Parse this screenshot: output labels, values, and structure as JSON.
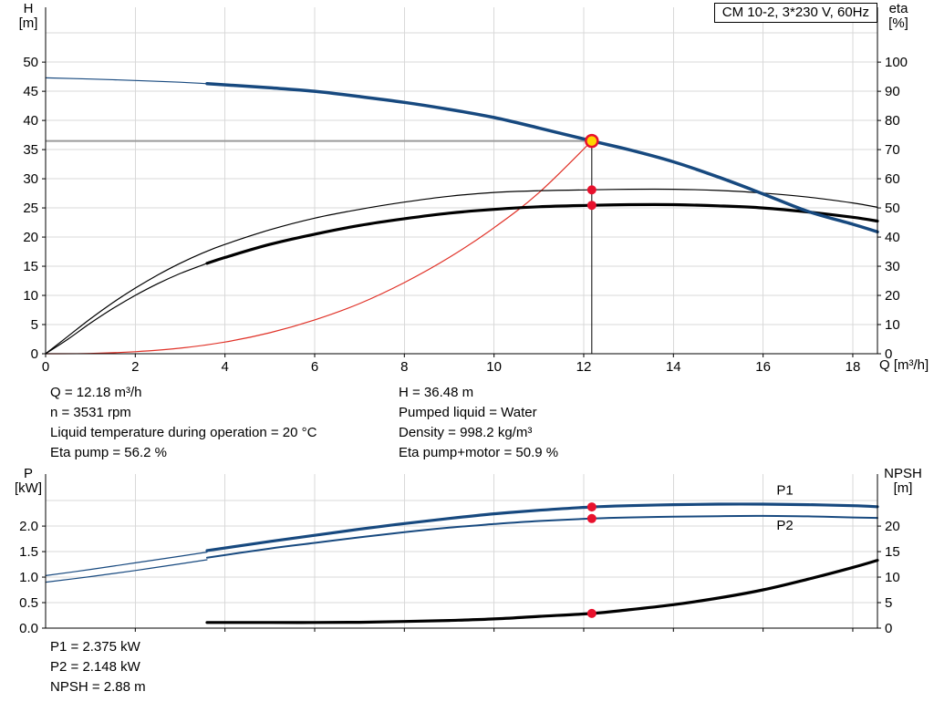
{
  "colors": {
    "curve_blue": "#17497f",
    "curve_black": "#000000",
    "curve_red": "#e03127",
    "marker_red": "#e8112d",
    "marker_yellow": "#ffd500",
    "grid": "#d9d9d9",
    "guide_gray": "#9b9b9b"
  },
  "annotations": {
    "duty_left": [
      "Q = 12.18 m³/h",
      "n = 3531 rpm",
      "Liquid temperature during operation = 20 °C",
      "Eta pump = 56.2 %"
    ],
    "duty_right": [
      "H = 36.48 m",
      "Pumped liquid = Water",
      "Density = 998.2 kg/m³",
      "Eta pump+motor = 50.9 %"
    ],
    "power": [
      "P1 = 2.375 kW",
      "P2 = 2.148 kW",
      "NPSH = 2.88 m"
    ]
  },
  "chart_data": [
    {
      "id": "head-eta-chart",
      "type": "line",
      "title": "CM 10-2, 3*230 V, 60Hz",
      "x_axis": {
        "label": "Q [m³/h]",
        "lim": [
          0,
          18.55
        ],
        "grid_ticks": [
          2,
          4,
          6,
          8,
          10,
          12,
          14,
          16,
          18
        ],
        "tick_labels": [
          {
            "v": 0,
            "t": "0"
          },
          {
            "v": 2,
            "t": "2"
          },
          {
            "v": 4,
            "t": "4"
          },
          {
            "v": 6,
            "t": "6"
          },
          {
            "v": 8,
            "t": "8"
          },
          {
            "v": 10,
            "t": "10"
          },
          {
            "v": 12,
            "t": "12"
          },
          {
            "v": 14,
            "t": "14"
          },
          {
            "v": 16,
            "t": "16"
          },
          {
            "v": 18,
            "t": "18"
          }
        ]
      },
      "left_axis": {
        "label_lines": [
          "H",
          "[m]"
        ],
        "lim": [
          0,
          59.4
        ],
        "grid_ticks": [
          5,
          10,
          15,
          20,
          25,
          30,
          35,
          40,
          45,
          50,
          55
        ],
        "tick_labels": [
          {
            "v": 0,
            "t": "0"
          },
          {
            "v": 5,
            "t": "5"
          },
          {
            "v": 10,
            "t": "10"
          },
          {
            "v": 15,
            "t": "15"
          },
          {
            "v": 20,
            "t": "20"
          },
          {
            "v": 25,
            "t": "25"
          },
          {
            "v": 30,
            "t": "30"
          },
          {
            "v": 35,
            "t": "35"
          },
          {
            "v": 40,
            "t": "40"
          },
          {
            "v": 45,
            "t": "45"
          },
          {
            "v": 50,
            "t": "50"
          }
        ]
      },
      "right_axis": {
        "label_lines": [
          "eta",
          "[%]"
        ],
        "lim": [
          0,
          118.8
        ],
        "grid_ticks": [],
        "tick_labels": [
          {
            "v": 0,
            "t": "0"
          },
          {
            "v": 10,
            "t": "10"
          },
          {
            "v": 20,
            "t": "20"
          },
          {
            "v": 30,
            "t": "30"
          },
          {
            "v": 40,
            "t": "40"
          },
          {
            "v": 50,
            "t": "50"
          },
          {
            "v": 60,
            "t": "60"
          },
          {
            "v": 70,
            "t": "70"
          },
          {
            "v": 80,
            "t": "80"
          },
          {
            "v": 90,
            "t": "90"
          },
          {
            "v": 100,
            "t": "100"
          }
        ]
      },
      "guides": [
        {
          "name": "duty-h-guide",
          "type": "h",
          "y": 36.48,
          "x0": 0,
          "x1": 12.18,
          "axis": "left",
          "color": "#9b9b9b",
          "width": 2
        },
        {
          "name": "duty-v-guide",
          "type": "v",
          "x": 12.18,
          "y0": 0,
          "y1": 36.48,
          "axis": "left",
          "color": "#000000",
          "width": 1
        }
      ],
      "series": [
        {
          "name": "system-curve",
          "axis": "left",
          "color": "#e03127",
          "width": 1.2,
          "points": [
            [
              0,
              0
            ],
            [
              1,
              0.05
            ],
            [
              2,
              0.35
            ],
            [
              3,
              0.95
            ],
            [
              4,
              2.0
            ],
            [
              5,
              3.6
            ],
            [
              6,
              5.8
            ],
            [
              7,
              8.6
            ],
            [
              8,
              12.2
            ],
            [
              9,
              16.5
            ],
            [
              10,
              21.6
            ],
            [
              11,
              27.6
            ],
            [
              12.18,
              36.48
            ]
          ]
        },
        {
          "name": "eta-pump-motor-thin",
          "axis": "right",
          "color": "#000000",
          "width": 1.2,
          "points": [
            [
              0,
              0
            ],
            [
              0.5,
              5
            ],
            [
              1,
              10.5
            ],
            [
              1.5,
              15.5
            ],
            [
              2,
              20
            ],
            [
              2.5,
              24
            ],
            [
              3,
              27.5
            ],
            [
              3.6,
              31
            ]
          ]
        },
        {
          "name": "eta-pump-motor-curve",
          "axis": "right",
          "color": "#000000",
          "width": 3.2,
          "points": [
            [
              3.6,
              31
            ],
            [
              4,
              33
            ],
            [
              5,
              37.5
            ],
            [
              6,
              41
            ],
            [
              7,
              44
            ],
            [
              8,
              46.3
            ],
            [
              9,
              48.2
            ],
            [
              10,
              49.5
            ],
            [
              11,
              50.4
            ],
            [
              12.18,
              50.9
            ],
            [
              13,
              51.1
            ],
            [
              14,
              51.1
            ],
            [
              15,
              50.7
            ],
            [
              16,
              50.0
            ],
            [
              17,
              48.6
            ],
            [
              18,
              46.8
            ],
            [
              18.55,
              45.5
            ]
          ]
        },
        {
          "name": "eta-pump-curve",
          "axis": "right",
          "color": "#000000",
          "width": 1.2,
          "points": [
            [
              0,
              0
            ],
            [
              0.5,
              6
            ],
            [
              1,
              12
            ],
            [
              1.5,
              17.5
            ],
            [
              2,
              22.5
            ],
            [
              2.5,
              27
            ],
            [
              3,
              31
            ],
            [
              3.5,
              34.5
            ],
            [
              4,
              37.5
            ],
            [
              5,
              42.5
            ],
            [
              6,
              46.5
            ],
            [
              7,
              49.5
            ],
            [
              8,
              52
            ],
            [
              9,
              54
            ],
            [
              10,
              55.3
            ],
            [
              11,
              55.9
            ],
            [
              12.18,
              56.2
            ],
            [
              13,
              56.4
            ],
            [
              14,
              56.4
            ],
            [
              15,
              56.0
            ],
            [
              16,
              55.1
            ],
            [
              17,
              53.7
            ],
            [
              18,
              51.7
            ],
            [
              18.55,
              50.2
            ]
          ]
        },
        {
          "name": "head-curve-thin",
          "axis": "left",
          "color": "#17497f",
          "width": 1.2,
          "points": [
            [
              0,
              47.3
            ],
            [
              1,
              47.1
            ],
            [
              2,
              46.85
            ],
            [
              3,
              46.55
            ],
            [
              3.6,
              46.3
            ]
          ]
        },
        {
          "name": "head-curve",
          "axis": "left",
          "color": "#17497f",
          "width": 3.5,
          "points": [
            [
              3.6,
              46.3
            ],
            [
              5,
              45.6
            ],
            [
              6,
              45.0
            ],
            [
              7,
              44.1
            ],
            [
              8,
              43.1
            ],
            [
              9,
              41.9
            ],
            [
              10,
              40.5
            ],
            [
              11,
              38.7
            ],
            [
              12.18,
              36.48
            ],
            [
              13,
              35.0
            ],
            [
              14,
              32.9
            ],
            [
              15,
              30.3
            ],
            [
              16,
              27.4
            ],
            [
              17,
              24.4
            ],
            [
              18,
              22.2
            ],
            [
              18.55,
              20.9
            ]
          ]
        }
      ],
      "markers": [
        {
          "name": "eta-pump-dot",
          "x": 12.18,
          "y": 56.2,
          "axis": "right",
          "r": 5,
          "fill": "#e8112d"
        },
        {
          "name": "eta-pump-motor-dot",
          "x": 12.18,
          "y": 50.9,
          "axis": "right",
          "r": 5,
          "fill": "#e8112d"
        },
        {
          "name": "duty-point",
          "x": 12.18,
          "y": 36.48,
          "axis": "left",
          "r": 6.5,
          "fill": "#ffd500",
          "stroke": "#e8112d",
          "stroke_width": 2.5,
          "interactable": true
        }
      ],
      "series_labels": []
    },
    {
      "id": "power-npsh-chart",
      "type": "line",
      "title": "",
      "x_axis": {
        "label": "",
        "lim": [
          0,
          18.55
        ],
        "grid_ticks": [
          2,
          4,
          6,
          8,
          10,
          12,
          14,
          16,
          18
        ],
        "tick_labels": []
      },
      "left_axis": {
        "label_lines": [
          "P",
          "[kW]"
        ],
        "lim": [
          0,
          3.02
        ],
        "grid_ticks": [
          0.5,
          1,
          1.5,
          2,
          2.5
        ],
        "tick_labels": [
          {
            "v": 0,
            "t": "0.0"
          },
          {
            "v": 0.5,
            "t": "0.5"
          },
          {
            "v": 1,
            "t": "1.0"
          },
          {
            "v": 1.5,
            "t": "1.5"
          },
          {
            "v": 2,
            "t": "2.0"
          }
        ]
      },
      "right_axis": {
        "label_lines": [
          "NPSH",
          "[m]"
        ],
        "lim": [
          0,
          30.2
        ],
        "grid_ticks": [],
        "tick_labels": [
          {
            "v": 0,
            "t": "0"
          },
          {
            "v": 5,
            "t": "5"
          },
          {
            "v": 10,
            "t": "10"
          },
          {
            "v": 15,
            "t": "15"
          },
          {
            "v": 20,
            "t": "20"
          }
        ]
      },
      "guides": [],
      "series": [
        {
          "name": "npsh-curve",
          "axis": "right",
          "color": "#000000",
          "width": 3.2,
          "points": [
            [
              3.6,
              1.1
            ],
            [
              5,
              1.1
            ],
            [
              6,
              1.1
            ],
            [
              7,
              1.15
            ],
            [
              8,
              1.3
            ],
            [
              9,
              1.5
            ],
            [
              10,
              1.8
            ],
            [
              11,
              2.3
            ],
            [
              12.18,
              2.88
            ],
            [
              13,
              3.6
            ],
            [
              14,
              4.6
            ],
            [
              15,
              5.9
            ],
            [
              16,
              7.5
            ],
            [
              17,
              9.6
            ],
            [
              18,
              11.9
            ],
            [
              18.55,
              13.3
            ]
          ]
        },
        {
          "name": "p2-curve-thin",
          "axis": "left",
          "color": "#17497f",
          "width": 1.2,
          "points": [
            [
              0,
              0.9
            ],
            [
              1,
              1.01
            ],
            [
              2,
              1.13
            ],
            [
              3,
              1.26
            ],
            [
              3.6,
              1.34
            ]
          ]
        },
        {
          "name": "p2-curve",
          "axis": "left",
          "color": "#17497f",
          "width": 2,
          "points": [
            [
              3.6,
              1.38
            ],
            [
              5,
              1.56
            ],
            [
              6,
              1.67
            ],
            [
              7,
              1.78
            ],
            [
              8,
              1.88
            ],
            [
              9,
              1.97
            ],
            [
              10,
              2.04
            ],
            [
              11,
              2.1
            ],
            [
              12.18,
              2.148
            ],
            [
              13,
              2.17
            ],
            [
              14,
              2.185
            ],
            [
              15,
              2.195
            ],
            [
              16,
              2.2
            ],
            [
              17,
              2.19
            ],
            [
              18,
              2.17
            ],
            [
              18.55,
              2.16
            ]
          ]
        },
        {
          "name": "p1-curve-thin",
          "axis": "left",
          "color": "#17497f",
          "width": 1.2,
          "points": [
            [
              0,
              1.03
            ],
            [
              1,
              1.15
            ],
            [
              2,
              1.28
            ],
            [
              3,
              1.41
            ],
            [
              3.6,
              1.49
            ]
          ]
        },
        {
          "name": "p1-curve",
          "axis": "left",
          "color": "#17497f",
          "width": 3.2,
          "points": [
            [
              3.6,
              1.52
            ],
            [
              5,
              1.7
            ],
            [
              6,
              1.82
            ],
            [
              7,
              1.94
            ],
            [
              8,
              2.05
            ],
            [
              9,
              2.15
            ],
            [
              10,
              2.24
            ],
            [
              11,
              2.31
            ],
            [
              12.18,
              2.375
            ],
            [
              13,
              2.4
            ],
            [
              14,
              2.42
            ],
            [
              15,
              2.43
            ],
            [
              16,
              2.43
            ],
            [
              17,
              2.42
            ],
            [
              18,
              2.4
            ],
            [
              18.55,
              2.38
            ]
          ]
        }
      ],
      "markers": [
        {
          "name": "p1-dot",
          "x": 12.18,
          "y": 2.375,
          "axis": "left",
          "r": 5,
          "fill": "#e8112d"
        },
        {
          "name": "p2-dot",
          "x": 12.18,
          "y": 2.148,
          "axis": "left",
          "r": 5,
          "fill": "#e8112d"
        },
        {
          "name": "npsh-dot",
          "x": 12.18,
          "y": 2.88,
          "axis": "right",
          "r": 5,
          "fill": "#e8112d"
        }
      ],
      "series_labels": [
        {
          "name": "p1-label",
          "text": "P1",
          "x": 16.3,
          "y": 2.62,
          "axis": "left",
          "color": "#17497f"
        },
        {
          "name": "p2-label",
          "text": "P2",
          "x": 16.3,
          "y": 1.93,
          "axis": "left",
          "color": "#17497f"
        }
      ]
    }
  ]
}
